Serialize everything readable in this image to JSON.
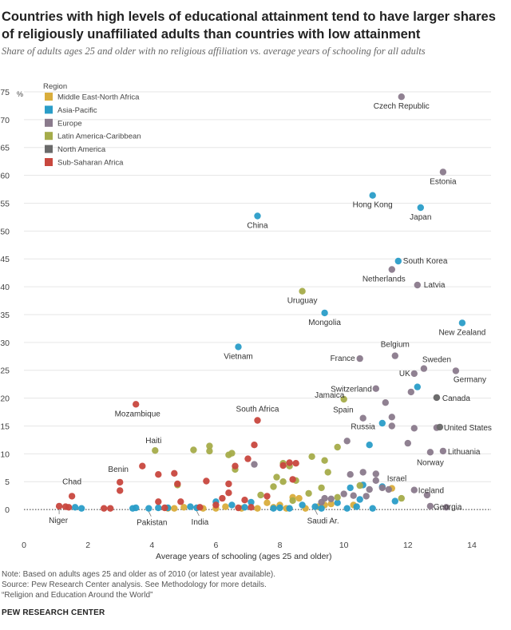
{
  "header": {
    "title": "Countries with high levels of educational attainment tend to have larger shares of religiously unaffiliated adults than countries with low attainment",
    "subtitle": "Share of adults ages 25 and older with no religious affiliation vs. average years of schooling for all adults"
  },
  "footer": {
    "note": "Note: Based on adults ages 25 and older as of 2010 (or latest year available).",
    "source": "Source: Pew Research Center analysis. See Methodology for more details.",
    "report": "“Religion and Education Around the World”",
    "brand": "PEW RESEARCH CENTER"
  },
  "chart_data": {
    "type": "scatter",
    "xlabel": "Average years of schooling (ages 25 and older)",
    "ylabel": "",
    "y_unit_label": "%",
    "xlim": [
      0,
      14.6
    ],
    "ylim": [
      -4,
      77
    ],
    "x_ticks": [
      0,
      2,
      4,
      6,
      8,
      10,
      12,
      14
    ],
    "y_ticks": [
      0,
      5,
      10,
      15,
      20,
      25,
      30,
      35,
      40,
      45,
      50,
      55,
      60,
      65,
      70,
      75
    ],
    "y_tick_labels": [
      "0",
      "5",
      "10",
      "15",
      "20",
      "25",
      "30",
      "35",
      "40",
      "45",
      "50",
      "55",
      "60",
      "65",
      "70",
      "75"
    ],
    "grid": true,
    "legend_title": "Region",
    "legend_position": "top-left",
    "series": [
      {
        "name": "Middle East-North Africa",
        "color": "#d9ad3c",
        "points": [
          [
            4.5,
            0.2
          ],
          [
            4.7,
            0.2
          ],
          [
            5.6,
            0.2
          ],
          [
            6.0,
            0.2
          ],
          [
            6.3,
            0.5
          ],
          [
            6.8,
            0.2
          ],
          [
            7.3,
            0.2
          ],
          [
            7.8,
            0.4
          ],
          [
            8.0,
            0.8
          ],
          [
            8.4,
            2.2
          ],
          [
            8.6,
            2.0
          ],
          [
            8.8,
            0.2
          ],
          [
            9.2,
            0.5
          ],
          [
            9.4,
            0.8
          ],
          [
            9.6,
            1.0
          ],
          [
            10.3,
            0.8
          ],
          [
            11.5,
            3.8
          ],
          [
            8.2,
            0.2
          ],
          [
            7.6,
            1.2
          ],
          [
            5.0,
            0.4
          ]
        ]
      },
      {
        "name": "Asia-Pacific",
        "color": "#2a9dc8",
        "points": [
          [
            7.3,
            52.7
          ],
          [
            10.9,
            56.4
          ],
          [
            12.4,
            54.2
          ],
          [
            11.7,
            44.6
          ],
          [
            9.4,
            35.3
          ],
          [
            13.7,
            33.5
          ],
          [
            6.7,
            29.2
          ],
          [
            12.3,
            22.0
          ],
          [
            11.2,
            15.5
          ],
          [
            10.8,
            11.6
          ],
          [
            10.6,
            4.4
          ],
          [
            10.2,
            3.9
          ],
          [
            11.6,
            1.5
          ],
          [
            10.5,
            1.8
          ],
          [
            9.8,
            1.2
          ],
          [
            9.1,
            0.5
          ],
          [
            8.7,
            0.8
          ],
          [
            8.0,
            0.3
          ],
          [
            7.8,
            0.2
          ],
          [
            6.5,
            0.8
          ],
          [
            6.0,
            1.4
          ],
          [
            5.4,
            0.3
          ],
          [
            5.2,
            0.5
          ],
          [
            4.5,
            0.3
          ],
          [
            4.2,
            0.3
          ],
          [
            3.9,
            0.2
          ],
          [
            3.5,
            0.3
          ],
          [
            3.4,
            0.2
          ],
          [
            1.8,
            0.2
          ],
          [
            1.6,
            0.4
          ],
          [
            10.9,
            0.2
          ],
          [
            10.1,
            0.2
          ],
          [
            9.3,
            0.2
          ],
          [
            8.3,
            0.2
          ],
          [
            7.1,
            1.3
          ],
          [
            6.9,
            0.4
          ],
          [
            10.4,
            0.5
          ],
          [
            11.2,
            4.1
          ]
        ]
      },
      {
        "name": "Europe",
        "color": "#8a7a8c",
        "points": [
          [
            11.8,
            74.1
          ],
          [
            13.1,
            60.6
          ],
          [
            11.5,
            43.1
          ],
          [
            12.3,
            40.3
          ],
          [
            10.5,
            27.1
          ],
          [
            11.6,
            27.6
          ],
          [
            12.5,
            25.3
          ],
          [
            13.5,
            24.9
          ],
          [
            12.2,
            24.4
          ],
          [
            11.0,
            21.7
          ],
          [
            12.1,
            21.1
          ],
          [
            12.9,
            20.1
          ],
          [
            11.3,
            19.2
          ],
          [
            11.5,
            16.6
          ],
          [
            10.6,
            16.4
          ],
          [
            11.5,
            15.0
          ],
          [
            12.2,
            14.6
          ],
          [
            12.9,
            14.7
          ],
          [
            12.0,
            11.9
          ],
          [
            13.1,
            10.5
          ],
          [
            12.7,
            10.3
          ],
          [
            10.1,
            12.3
          ],
          [
            11.0,
            6.4
          ],
          [
            10.6,
            6.7
          ],
          [
            10.2,
            6.3
          ],
          [
            11.0,
            5.2
          ],
          [
            11.2,
            3.9
          ],
          [
            10.8,
            3.6
          ],
          [
            11.4,
            3.6
          ],
          [
            12.2,
            3.5
          ],
          [
            12.7,
            0.6
          ],
          [
            13.2,
            0.4
          ],
          [
            10.3,
            2.5
          ],
          [
            10.7,
            2.4
          ],
          [
            9.4,
            2.0
          ],
          [
            9.6,
            1.9
          ],
          [
            9.3,
            1.3
          ],
          [
            7.2,
            8.1
          ],
          [
            10.0,
            2.8
          ],
          [
            12.6,
            2.6
          ]
        ]
      },
      {
        "name": "Latin America-Caribbean",
        "color": "#a5ac4a",
        "points": [
          [
            8.7,
            39.2
          ],
          [
            4.1,
            10.6
          ],
          [
            10.0,
            19.8
          ],
          [
            5.3,
            10.7
          ],
          [
            5.8,
            11.4
          ],
          [
            5.8,
            10.5
          ],
          [
            6.4,
            9.8
          ],
          [
            6.6,
            7.2
          ],
          [
            7.4,
            2.6
          ],
          [
            7.8,
            4.1
          ],
          [
            7.9,
            5.8
          ],
          [
            8.1,
            5.0
          ],
          [
            8.1,
            8.3
          ],
          [
            8.5,
            5.2
          ],
          [
            8.3,
            7.8
          ],
          [
            9.0,
            9.5
          ],
          [
            9.4,
            8.8
          ],
          [
            9.5,
            6.7
          ],
          [
            9.8,
            11.2
          ],
          [
            9.3,
            3.9
          ],
          [
            8.4,
            1.6
          ],
          [
            8.9,
            2.9
          ],
          [
            9.8,
            2.2
          ],
          [
            10.5,
            4.3
          ],
          [
            11.8,
            2.0
          ],
          [
            4.8,
            4.4
          ],
          [
            6.5,
            10.1
          ]
        ]
      },
      {
        "name": "North America",
        "color": "#6a6a6a",
        "points": [
          [
            12.9,
            20.1
          ],
          [
            13.0,
            14.8
          ]
        ]
      },
      {
        "name": "Sub-Saharan Africa",
        "color": "#c8473e",
        "points": [
          [
            3.5,
            18.9
          ],
          [
            7.3,
            16.0
          ],
          [
            3.7,
            7.8
          ],
          [
            3.0,
            4.9
          ],
          [
            3.0,
            3.4
          ],
          [
            1.5,
            2.4
          ],
          [
            1.1,
            0.6
          ],
          [
            1.3,
            0.5
          ],
          [
            1.4,
            0.4
          ],
          [
            2.5,
            0.2
          ],
          [
            2.7,
            0.2
          ],
          [
            4.2,
            6.3
          ],
          [
            4.2,
            1.4
          ],
          [
            4.7,
            6.5
          ],
          [
            4.8,
            4.6
          ],
          [
            4.9,
            1.4
          ],
          [
            5.5,
            0.4
          ],
          [
            5.7,
            5.1
          ],
          [
            6.2,
            2.0
          ],
          [
            6.4,
            3.0
          ],
          [
            6.4,
            4.6
          ],
          [
            6.6,
            7.8
          ],
          [
            6.9,
            1.7
          ],
          [
            7.0,
            9.1
          ],
          [
            7.2,
            11.6
          ],
          [
            7.6,
            2.4
          ],
          [
            8.1,
            7.9
          ],
          [
            8.3,
            8.4
          ],
          [
            8.5,
            8.3
          ],
          [
            8.4,
            5.4
          ],
          [
            6.7,
            0.3
          ],
          [
            7.1,
            0.4
          ],
          [
            6.0,
            0.8
          ],
          [
            4.4,
            0.3
          ]
        ]
      }
    ],
    "annotations": [
      {
        "text": "Czech Republic",
        "x": 11.8,
        "y": 74.1
      },
      {
        "text": "Estonia",
        "x": 13.1,
        "y": 60.6
      },
      {
        "text": "Hong Kong",
        "x": 10.9,
        "y": 56.4
      },
      {
        "text": "Japan",
        "x": 12.4,
        "y": 54.2
      },
      {
        "text": "China",
        "x": 7.3,
        "y": 52.7
      },
      {
        "text": "South Korea",
        "x": 11.7,
        "y": 44.6
      },
      {
        "text": "Netherlands",
        "x": 11.5,
        "y": 43.1
      },
      {
        "text": "Latvia",
        "x": 12.3,
        "y": 40.3
      },
      {
        "text": "Uruguay",
        "x": 8.7,
        "y": 39.2
      },
      {
        "text": "Mongolia",
        "x": 9.4,
        "y": 35.3
      },
      {
        "text": "New Zealand",
        "x": 13.7,
        "y": 33.5
      },
      {
        "text": "Vietnam",
        "x": 6.7,
        "y": 29.2
      },
      {
        "text": "France",
        "x": 10.5,
        "y": 27.1
      },
      {
        "text": "Belgium",
        "x": 11.6,
        "y": 27.6
      },
      {
        "text": "Sweden",
        "x": 12.5,
        "y": 25.3
      },
      {
        "text": "UK",
        "x": 12.2,
        "y": 24.4
      },
      {
        "text": "Germany",
        "x": 13.5,
        "y": 24.9
      },
      {
        "text": "Switzerland",
        "x": 11.0,
        "y": 21.7
      },
      {
        "text": "Jamaica",
        "x": 10.0,
        "y": 19.8
      },
      {
        "text": "Canada",
        "x": 12.9,
        "y": 20.1
      },
      {
        "text": "Spain",
        "x": 10.5,
        "y": 18.0
      },
      {
        "text": "Mozambique",
        "x": 3.5,
        "y": 18.9
      },
      {
        "text": "South Africa",
        "x": 7.3,
        "y": 16.0
      },
      {
        "text": "Russia",
        "x": 10.6,
        "y": 16.4
      },
      {
        "text": "United States",
        "x": 13.0,
        "y": 14.8
      },
      {
        "text": "Haiti",
        "x": 4.1,
        "y": 10.6
      },
      {
        "text": "Lithuania",
        "x": 13.1,
        "y": 10.5
      },
      {
        "text": "Norway",
        "x": 12.7,
        "y": 10.3
      },
      {
        "text": "Benin",
        "x": 3.0,
        "y": 4.9
      },
      {
        "text": "Israel",
        "x": 11.5,
        "y": 3.8
      },
      {
        "text": "Chad",
        "x": 1.5,
        "y": 2.4
      },
      {
        "text": "Iceland",
        "x": 12.2,
        "y": 3.5
      },
      {
        "text": "Georgia",
        "x": 12.7,
        "y": 0.6
      },
      {
        "text": "Niger",
        "x": 1.1,
        "y": 0.6
      },
      {
        "text": "Pakistan",
        "x": 3.9,
        "y": 0.2
      },
      {
        "text": "India",
        "x": 5.4,
        "y": 0.3
      },
      {
        "text": "Saudi Ar.",
        "x": 9.1,
        "y": 0.5
      }
    ]
  }
}
